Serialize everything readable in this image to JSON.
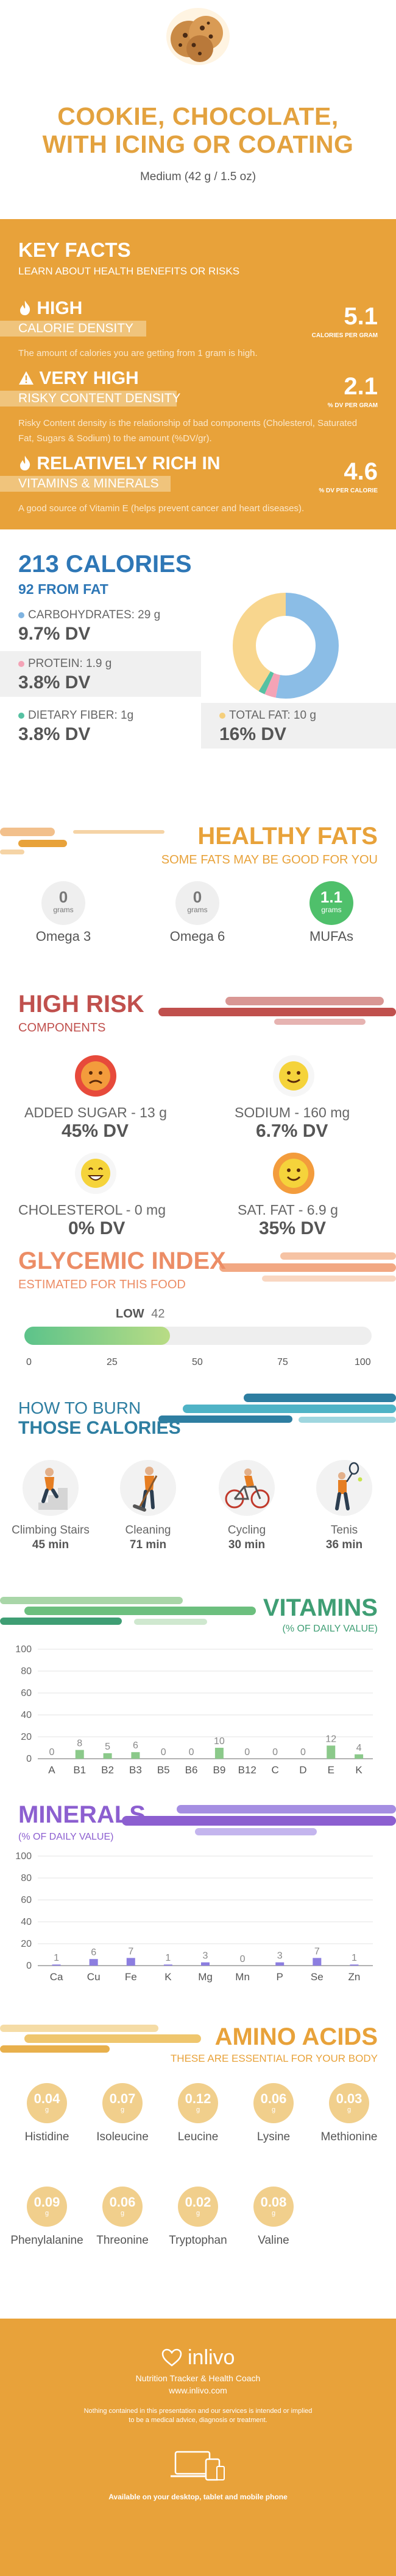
{
  "food": {
    "title_line1": "COOKIE, CHOCOLATE,",
    "title_line2": "WITH ICING OR COATING",
    "serving": "Medium (42 g / 1.5 oz)"
  },
  "key_facts": {
    "title": "KEY FACTS",
    "subtitle": "LEARN ABOUT HEALTH BENEFITS OR RISKS",
    "items": [
      {
        "head": "HIGH",
        "head2": "CALORIE DENSITY",
        "value": "5.1",
        "unit": "CALORIES PER GRAM",
        "desc": "The amount of calories you are getting from 1 gram is high."
      },
      {
        "head": "VERY HIGH",
        "head2": "RISKY CONTENT DENSITY",
        "value": "2.1",
        "unit": "% DV PER GRAM",
        "desc": "Risky Content density is the relationship of bad components (Cholesterol, Saturated Fat, Sugars & Sodium) to the amount (%DV/gr)."
      },
      {
        "head": "RELATIVELY RICH  IN",
        "head2": "VITAMINS & MINERALS",
        "value": "4.6",
        "unit": "% DV PER CALORIE",
        "desc": "A good source of Vitamin E (helps prevent cancer and heart diseases)."
      }
    ],
    "icons": [
      "flame-icon",
      "warning-icon",
      "flame-icon"
    ]
  },
  "calories": {
    "title": "213 CALORIES",
    "subtitle": "92 FROM FAT",
    "carbs": {
      "label": "CARBOHYDRATES: 29 g",
      "dv": "9.7% DV",
      "color": "#7fb3e0"
    },
    "protein": {
      "label": "PROTEIN: 1.9 g",
      "dv": "3.8% DV",
      "color": "#f4a3b6"
    },
    "fiber": {
      "label": "DIETARY FIBER: 1g",
      "dv": "3.8% DV",
      "color": "#56c1a2"
    },
    "fat": {
      "label": "TOTAL FAT: 10 g",
      "dv": "16% DV",
      "color": "#f5cf7c"
    },
    "donut": [
      {
        "name": "carbohydrates",
        "value": 0.53,
        "color": "#8bbde6"
      },
      {
        "name": "protein",
        "value": 0.035,
        "color": "#f4a3b6"
      },
      {
        "name": "dietary fiber",
        "value": 0.02,
        "color": "#56c1a2"
      },
      {
        "name": "fat",
        "value": 0.415,
        "color": "#f8d68e"
      }
    ]
  },
  "fats": {
    "title": "HEALTHY FATS",
    "subtitle": "SOME FATS MAY BE GOOD FOR YOU",
    "items": [
      {
        "value": "0",
        "unit": "grams",
        "name": "Omega 3",
        "highlight": false
      },
      {
        "value": "0",
        "unit": "grams",
        "name": "Omega 6",
        "highlight": false
      },
      {
        "value": "1.1",
        "unit": "grams",
        "name": "MUFAs",
        "highlight": true
      }
    ]
  },
  "risk": {
    "title": "HIGH RISK",
    "subtitle": "COMPONENTS",
    "items": [
      {
        "label": "ADDED SUGAR - 13 g",
        "dv": "45% DV",
        "face": "sad-face-icon"
      },
      {
        "label": "SODIUM - 160 mg",
        "dv": "6.7% DV",
        "face": "smile-face-icon"
      },
      {
        "label": "CHOLESTEROL - 0 mg",
        "dv": "0% DV",
        "face": "grin-face-icon"
      },
      {
        "label": "SAT. FAT - 6.9 g",
        "dv": "35% DV",
        "face": "happy-face-icon"
      }
    ]
  },
  "glycemic": {
    "title": "GLYCEMIC INDEX",
    "subtitle": "ESTIMATED FOR THIS FOOD",
    "level": "LOW",
    "value": "42",
    "value_num": 42,
    "ticks": [
      "0",
      "25",
      "50",
      "75",
      "100"
    ]
  },
  "burn": {
    "title1": "HOW TO BURN",
    "title2": "THOSE CALORIES",
    "activities": [
      {
        "name": "Climbing Stairs",
        "minutes": "45 min",
        "icon": "climbing-stairs-icon"
      },
      {
        "name": "Cleaning",
        "minutes": "71 min",
        "icon": "cleaning-icon"
      },
      {
        "name": "Cycling",
        "minutes": "30 min",
        "icon": "cycling-icon"
      },
      {
        "name": "Tenis",
        "minutes": "36 min",
        "icon": "tennis-icon"
      }
    ]
  },
  "vitamins": {
    "title": "VITAMINS",
    "subtitle": "(% OF DAILY VALUE)",
    "y_ticks": [
      "100",
      "80",
      "60",
      "40",
      "20",
      "0"
    ]
  },
  "minerals": {
    "title": "MINERALS",
    "subtitle": "(% OF DAILY VALUE)",
    "y_ticks": [
      "100",
      "80",
      "60",
      "40",
      "20",
      "0"
    ]
  },
  "chart_data": [
    {
      "type": "bar",
      "categories": [
        "A",
        "B1",
        "B2",
        "B3",
        "B5",
        "B6",
        "B9",
        "B12",
        "C",
        "D",
        "E",
        "K"
      ],
      "values": [
        0,
        8,
        5,
        6,
        0,
        0,
        10,
        0,
        0,
        0,
        12,
        4
      ],
      "value_labels": [
        "0",
        "8",
        "5",
        "6",
        "0",
        "0",
        "10",
        "0",
        "0",
        "0",
        "12",
        "4"
      ],
      "ylim": [
        0,
        100
      ],
      "color": "#8bc98a",
      "grid": true
    },
    {
      "type": "bar",
      "categories": [
        "Ca",
        "Cu",
        "Fe",
        "K",
        "Mg",
        "Mn",
        "P",
        "Se",
        "Zn"
      ],
      "values": [
        1,
        6,
        7,
        1,
        3,
        0,
        3,
        7,
        1
      ],
      "value_labels": [
        "1",
        "6",
        "7",
        "1",
        "3",
        "0",
        "3",
        "7",
        "1"
      ],
      "ylim": [
        0,
        100
      ],
      "color": "#8c7ee0",
      "grid": true
    }
  ],
  "amino": {
    "title": "AMINO ACIDS",
    "subtitle": "THESE ARE ESSENTIAL FOR YOUR BODY",
    "items": [
      {
        "value": "0.04",
        "unit": "g",
        "name": "Histidine"
      },
      {
        "value": "0.07",
        "unit": "g",
        "name": "Isoleucine"
      },
      {
        "value": "0.12",
        "unit": "g",
        "name": "Leucine"
      },
      {
        "value": "0.06",
        "unit": "g",
        "name": "Lysine"
      },
      {
        "value": "0.03",
        "unit": "g",
        "name": "Methionine"
      },
      {
        "value": "0.09",
        "unit": "g",
        "name": "Phenylalanine"
      },
      {
        "value": "0.06",
        "unit": "g",
        "name": "Threonine"
      },
      {
        "value": "0.02",
        "unit": "g",
        "name": "Tryptophan"
      },
      {
        "value": "0.08",
        "unit": "g",
        "name": "Valine"
      }
    ]
  },
  "footer": {
    "brand": "inlivo",
    "tagline": "Nutrition Tracker & Health Coach",
    "url": "www.inlivo.com",
    "disclaimer1": "Nothing contained in this presentation and our services is intended or implied",
    "disclaimer2": "to be a medical advice, diagnosis or treatment.",
    "available": "Available on your desktop, tablet and mobile phone"
  },
  "colors": {
    "orange": "#e8a23a",
    "blue": "#2e77b6",
    "red": "#c0504d",
    "green": "#8bc98a",
    "purple": "#8c5fd0"
  }
}
